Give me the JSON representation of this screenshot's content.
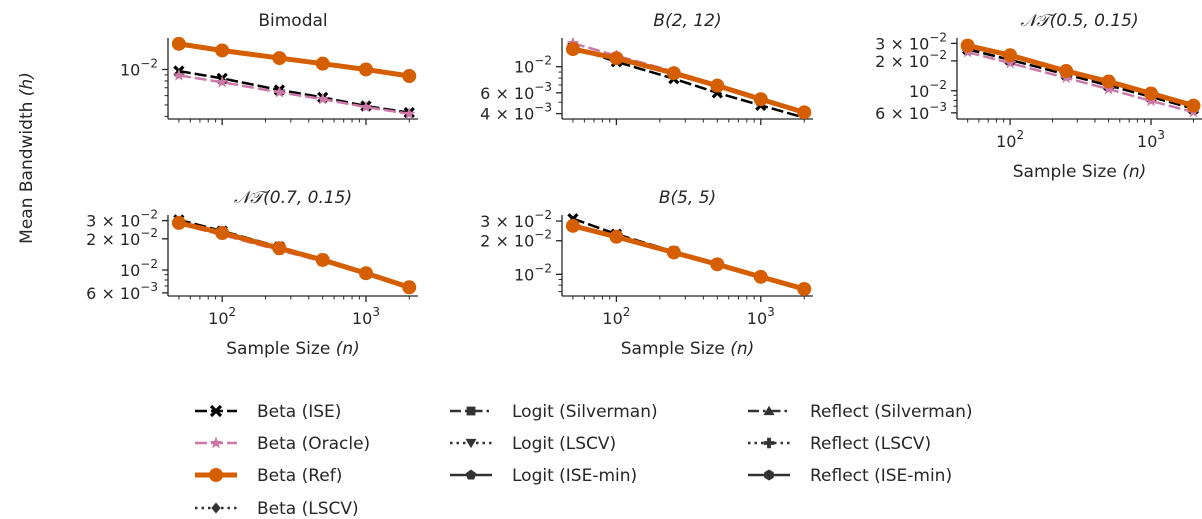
{
  "figure": {
    "ylabel_main": "Mean Bandwidth",
    "ylabel_sym": "(h)"
  },
  "legend": [
    {
      "label": "Beta (ISE)",
      "color": "#000000",
      "dash": "dashed",
      "marker": "x",
      "width": 2.5
    },
    {
      "label": "Beta (Oracle)",
      "color": "#cc79a7",
      "dash": "dashed",
      "marker": "star",
      "width": 2.5
    },
    {
      "label": "Beta (Ref)",
      "color": "#d55e00",
      "dash": "solid",
      "marker": "circle",
      "width": 5
    },
    {
      "label": "Beta (LSCV)",
      "color": "#333333",
      "dash": "dotted",
      "marker": "diamond",
      "width": 2.5
    },
    {
      "label": "Logit (Silverman)",
      "color": "#333333",
      "dash": "dashdot",
      "marker": "square",
      "width": 2.5
    },
    {
      "label": "Logit (LSCV)",
      "color": "#333333",
      "dash": "dotted",
      "marker": "triangle-down",
      "width": 2.5
    },
    {
      "label": "Logit (ISE-min)",
      "color": "#333333",
      "dash": "solid",
      "marker": "pentagon",
      "width": 2.5
    },
    {
      "label": "Reflect (Silverman)",
      "color": "#333333",
      "dash": "dashdot",
      "marker": "triangle-up",
      "width": 2.5
    },
    {
      "label": "Reflect (LSCV)",
      "color": "#333333",
      "dash": "dotted",
      "marker": "plus",
      "width": 2.5
    },
    {
      "label": "Reflect (ISE-min)",
      "color": "#333333",
      "dash": "solid",
      "marker": "hexagon",
      "width": 2.5
    }
  ],
  "chart_data": [
    {
      "type": "line",
      "title": "Bimodal",
      "title_math": false,
      "xscale": "log",
      "yscale": "log",
      "xlabel": "",
      "ylabel": "",
      "xlim": [
        42,
        2300
      ],
      "ylim": [
        0.0038,
        0.0185
      ],
      "yticks": [
        0.01
      ],
      "yticklabels": [
        {
          "b": "10",
          "e": "−2"
        }
      ],
      "xticks": [],
      "xticklabels": [],
      "x": [
        50,
        100,
        250,
        500,
        1000,
        2000
      ],
      "series": [
        {
          "name": "Beta (Ref)",
          "values": [
            0.0165,
            0.0145,
            0.0125,
            0.0112,
            0.01,
            0.0088
          ]
        },
        {
          "name": "Beta (ISE)",
          "values": [
            0.0097,
            0.0084,
            0.0067,
            0.0058,
            0.0049,
            0.0043
          ]
        },
        {
          "name": "Beta (Oracle)",
          "values": [
            0.0089,
            0.0078,
            0.0064,
            0.0056,
            0.0048,
            0.0042
          ]
        }
      ]
    },
    {
      "type": "line",
      "title": "B(2, 12)",
      "title_math": true,
      "xscale": "log",
      "yscale": "log",
      "xlabel": "",
      "ylabel": "",
      "xlim": [
        42,
        2300
      ],
      "ylim": [
        0.0036,
        0.0175
      ],
      "yticks": [
        0.01,
        0.006,
        0.004
      ],
      "yticklabels": [
        {
          "b": "10",
          "e": "−2"
        },
        {
          "b": "6 × 10",
          "e": "−3"
        },
        {
          "b": "4 × 10",
          "e": "−3"
        }
      ],
      "xticks": [],
      "xticklabels": [],
      "x": [
        50,
        100,
        250,
        500,
        1000,
        2000
      ],
      "series": [
        {
          "name": "Beta (Ref)",
          "values": [
            0.0141,
            0.0118,
            0.0088,
            0.0069,
            0.0053,
            0.0041
          ]
        },
        {
          "name": "Beta (ISE)",
          "values": [
            0.0146,
            0.011,
            0.0079,
            0.006,
            0.0047,
            0.0037
          ]
        },
        {
          "name": "Beta (Oracle)",
          "values": [
            0.0158,
            0.0124,
            0.0091,
            0.007,
            0.0053,
            0.0041
          ]
        }
      ]
    },
    {
      "type": "line",
      "title": "𝒩𝒯(0.5, 0.15)",
      "title_math": true,
      "xscale": "log",
      "yscale": "log",
      "xlabel": "Sample Size",
      "xlabel_sym": "(n)",
      "ylabel": "",
      "xlim": [
        42,
        2300
      ],
      "ylim": [
        0.0052,
        0.034
      ],
      "yticks": [
        0.03,
        0.02,
        0.01,
        0.006
      ],
      "yticklabels": [
        {
          "b": "3 × 10",
          "e": "−2"
        },
        {
          "b": "2 × 10",
          "e": "−2"
        },
        {
          "b": "10",
          "e": "−2"
        },
        {
          "b": "6 × 10",
          "e": "−3"
        }
      ],
      "xticks": [
        100,
        1000
      ],
      "xticklabels": [
        {
          "b": "10",
          "e": "2"
        },
        {
          "b": "10",
          "e": "3"
        }
      ],
      "x": [
        50,
        100,
        250,
        500,
        1000,
        2000
      ],
      "series": [
        {
          "name": "Beta (Ref)",
          "values": [
            0.0285,
            0.0228,
            0.0158,
            0.0124,
            0.0094,
            0.0071
          ]
        },
        {
          "name": "Beta (ISE)",
          "values": [
            0.0262,
            0.0205,
            0.0146,
            0.0113,
            0.0087,
            0.0066
          ]
        },
        {
          "name": "Beta (Oracle)",
          "values": [
            0.0245,
            0.019,
            0.0135,
            0.0104,
            0.0079,
            0.0061
          ]
        }
      ]
    },
    {
      "type": "line",
      "title": "𝒩𝒯(0.7, 0.15)",
      "title_math": true,
      "xscale": "log",
      "yscale": "log",
      "xlabel": "Sample Size",
      "xlabel_sym": "(n)",
      "ylabel": "",
      "xlim": [
        42,
        2300
      ],
      "ylim": [
        0.0056,
        0.034
      ],
      "yticks": [
        0.03,
        0.02,
        0.01,
        0.006
      ],
      "yticklabels": [
        {
          "b": "3 × 10",
          "e": "−2"
        },
        {
          "b": "2 × 10",
          "e": "−2"
        },
        {
          "b": "10",
          "e": "−2"
        },
        {
          "b": "6 × 10",
          "e": "−3"
        }
      ],
      "xticks": [
        100,
        1000
      ],
      "xticklabels": [
        {
          "b": "10",
          "e": "2"
        },
        {
          "b": "10",
          "e": "3"
        }
      ],
      "x": [
        50,
        100,
        250,
        500,
        1000,
        2000
      ],
      "series": [
        {
          "name": "Beta (Ref)",
          "values": [
            0.0285,
            0.0228,
            0.0162,
            0.0125,
            0.0093,
            0.0068
          ]
        },
        {
          "name": "Beta (ISE)",
          "values": [
            0.0305,
            0.0238,
            0.0167,
            0.0127,
            0.0094,
            0.0069
          ]
        },
        {
          "name": "Beta (Oracle)",
          "values": [
            0.0278,
            0.0218,
            0.0155,
            0.0121,
            0.0091,
            0.0066
          ]
        }
      ]
    },
    {
      "type": "line",
      "title": "B(5, 5)",
      "title_math": true,
      "xscale": "log",
      "yscale": "log",
      "xlabel": "Sample Size",
      "xlabel_sym": "(n)",
      "ylabel": "",
      "xlim": [
        42,
        2300
      ],
      "ylim": [
        0.0064,
        0.034
      ],
      "yticks": [
        0.03,
        0.02,
        0.01
      ],
      "yticklabels": [
        {
          "b": "3 × 10",
          "e": "−2"
        },
        {
          "b": "2 × 10",
          "e": "−2"
        },
        {
          "b": "10",
          "e": "−2"
        }
      ],
      "xticks": [
        100,
        1000
      ],
      "xticklabels": [
        {
          "b": "10",
          "e": "2"
        },
        {
          "b": "10",
          "e": "3"
        }
      ],
      "x": [
        50,
        100,
        250,
        500,
        1000,
        2000
      ],
      "series": [
        {
          "name": "Beta (Ref)",
          "values": [
            0.0272,
            0.0217,
            0.0157,
            0.0123,
            0.0095,
            0.0074
          ]
        },
        {
          "name": "Beta (ISE)",
          "values": [
            0.0315,
            0.0229,
            0.016,
            0.0124,
            0.0095,
            0.0073
          ]
        },
        {
          "name": "Beta (Oracle)",
          "values": [
            0.0268,
            0.0214,
            0.0155,
            0.0121,
            0.0093,
            0.0072
          ]
        }
      ]
    }
  ]
}
